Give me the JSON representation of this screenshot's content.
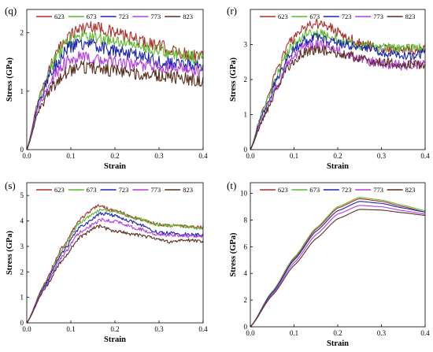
{
  "chart_data": [
    {
      "type": "line",
      "panel_label": "(q)",
      "xlabel": "Strain",
      "ylabel": "Stress (GPa)",
      "xlim": [
        0,
        0.4
      ],
      "ylim": [
        0,
        2.4
      ],
      "xticks": [
        "0.0",
        "0.1",
        "0.2",
        "0.3",
        "0.4"
      ],
      "xtick_values": [
        0,
        0.1,
        0.2,
        0.3,
        0.4
      ],
      "yticks": [
        "0",
        "1",
        "2"
      ],
      "ytick_values": [
        0,
        1,
        2
      ],
      "legend_position": "top",
      "noise": 0.045,
      "series": [
        {
          "name": "623",
          "color": "#a8322a",
          "points": [
            [
              0,
              0
            ],
            [
              0.03,
              0.95
            ],
            [
              0.06,
              1.55
            ],
            [
              0.09,
              1.92
            ],
            [
              0.12,
              2.08
            ],
            [
              0.15,
              2.12
            ],
            [
              0.2,
              2.0
            ],
            [
              0.25,
              1.88
            ],
            [
              0.3,
              1.78
            ],
            [
              0.35,
              1.65
            ],
            [
              0.4,
              1.6
            ]
          ]
        },
        {
          "name": "673",
          "color": "#5cb82e",
          "points": [
            [
              0,
              0
            ],
            [
              0.03,
              0.92
            ],
            [
              0.06,
              1.5
            ],
            [
              0.09,
              1.85
            ],
            [
              0.12,
              1.95
            ],
            [
              0.15,
              1.92
            ],
            [
              0.2,
              1.85
            ],
            [
              0.25,
              1.78
            ],
            [
              0.3,
              1.7
            ],
            [
              0.35,
              1.62
            ],
            [
              0.4,
              1.55
            ]
          ]
        },
        {
          "name": "723",
          "color": "#1a24b0",
          "points": [
            [
              0,
              0
            ],
            [
              0.03,
              0.88
            ],
            [
              0.06,
              1.4
            ],
            [
              0.09,
              1.72
            ],
            [
              0.12,
              1.82
            ],
            [
              0.15,
              1.8
            ],
            [
              0.2,
              1.68
            ],
            [
              0.25,
              1.62
            ],
            [
              0.3,
              1.5
            ],
            [
              0.35,
              1.45
            ],
            [
              0.4,
              1.42
            ]
          ]
        },
        {
          "name": "773",
          "color": "#b43ce0",
          "points": [
            [
              0,
              0
            ],
            [
              0.03,
              0.8
            ],
            [
              0.06,
              1.25
            ],
            [
              0.09,
              1.5
            ],
            [
              0.12,
              1.58
            ],
            [
              0.15,
              1.55
            ],
            [
              0.2,
              1.5
            ],
            [
              0.25,
              1.45
            ],
            [
              0.3,
              1.42
            ],
            [
              0.35,
              1.38
            ],
            [
              0.4,
              1.35
            ]
          ]
        },
        {
          "name": "823",
          "color": "#5a2e1e",
          "points": [
            [
              0,
              0
            ],
            [
              0.03,
              0.72
            ],
            [
              0.06,
              1.1
            ],
            [
              0.09,
              1.32
            ],
            [
              0.12,
              1.42
            ],
            [
              0.15,
              1.4
            ],
            [
              0.2,
              1.35
            ],
            [
              0.25,
              1.3
            ],
            [
              0.3,
              1.28
            ],
            [
              0.35,
              1.22
            ],
            [
              0.4,
              1.18
            ]
          ]
        }
      ]
    },
    {
      "type": "line",
      "panel_label": "(r)",
      "xlabel": "Strain",
      "ylabel": "Stress (GPa)",
      "xlim": [
        0,
        0.4
      ],
      "ylim": [
        0,
        4.0
      ],
      "xticks": [
        "0.0",
        "0.1",
        "0.2",
        "0.3",
        "0.4"
      ],
      "xtick_values": [
        0,
        0.1,
        0.2,
        0.3,
        0.4
      ],
      "yticks": [
        "0",
        "1",
        "2",
        "3"
      ],
      "ytick_values": [
        0,
        1,
        2,
        3
      ],
      "legend_position": "top",
      "noise": 0.035,
      "series": [
        {
          "name": "623",
          "color": "#a8322a",
          "points": [
            [
              0,
              0
            ],
            [
              0.03,
              1.2
            ],
            [
              0.06,
              2.2
            ],
            [
              0.09,
              3.05
            ],
            [
              0.12,
              3.45
            ],
            [
              0.15,
              3.6
            ],
            [
              0.18,
              3.5
            ],
            [
              0.22,
              3.2
            ],
            [
              0.26,
              3.0
            ],
            [
              0.3,
              2.9
            ],
            [
              0.35,
              2.85
            ],
            [
              0.4,
              2.85
            ]
          ]
        },
        {
          "name": "673",
          "color": "#5cb82e",
          "points": [
            [
              0,
              0
            ],
            [
              0.03,
              1.15
            ],
            [
              0.06,
              2.1
            ],
            [
              0.09,
              2.9
            ],
            [
              0.12,
              3.25
            ],
            [
              0.15,
              3.32
            ],
            [
              0.18,
              3.25
            ],
            [
              0.22,
              3.05
            ],
            [
              0.26,
              2.95
            ],
            [
              0.3,
              2.9
            ],
            [
              0.35,
              2.88
            ],
            [
              0.4,
              2.9
            ]
          ]
        },
        {
          "name": "723",
          "color": "#1a24b0",
          "points": [
            [
              0,
              0
            ],
            [
              0.03,
              1.05
            ],
            [
              0.06,
              1.95
            ],
            [
              0.09,
              2.75
            ],
            [
              0.12,
              3.1
            ],
            [
              0.15,
              3.18
            ],
            [
              0.18,
              3.1
            ],
            [
              0.22,
              3.0
            ],
            [
              0.26,
              2.9
            ],
            [
              0.3,
              2.78
            ],
            [
              0.35,
              2.65
            ],
            [
              0.4,
              2.75
            ]
          ]
        },
        {
          "name": "773",
          "color": "#b43ce0",
          "points": [
            [
              0,
              0
            ],
            [
              0.03,
              0.95
            ],
            [
              0.06,
              1.8
            ],
            [
              0.09,
              2.55
            ],
            [
              0.12,
              2.9
            ],
            [
              0.15,
              3.02
            ],
            [
              0.18,
              2.95
            ],
            [
              0.22,
              2.7
            ],
            [
              0.26,
              2.55
            ],
            [
              0.3,
              2.45
            ],
            [
              0.35,
              2.4
            ],
            [
              0.4,
              2.45
            ]
          ]
        },
        {
          "name": "823",
          "color": "#5a2e1e",
          "points": [
            [
              0,
              0
            ],
            [
              0.03,
              0.9
            ],
            [
              0.06,
              1.7
            ],
            [
              0.09,
              2.4
            ],
            [
              0.12,
              2.75
            ],
            [
              0.15,
              2.85
            ],
            [
              0.18,
              2.82
            ],
            [
              0.22,
              2.7
            ],
            [
              0.26,
              2.55
            ],
            [
              0.3,
              2.5
            ],
            [
              0.35,
              2.4
            ],
            [
              0.4,
              2.42
            ]
          ]
        }
      ]
    },
    {
      "type": "line",
      "panel_label": "(s)",
      "xlabel": "Strain",
      "ylabel": "Stress (GPa)",
      "xlim": [
        0,
        0.4
      ],
      "ylim": [
        0,
        5.5
      ],
      "xticks": [
        "0.0",
        "0.1",
        "0.2",
        "0.3",
        "0.4"
      ],
      "xtick_values": [
        0,
        0.1,
        0.2,
        0.3,
        0.4
      ],
      "yticks": [
        "0",
        "1",
        "2",
        "3",
        "4",
        "5"
      ],
      "ytick_values": [
        0,
        1,
        2,
        3,
        4,
        5
      ],
      "legend_position": "top",
      "noise": 0.012,
      "series": [
        {
          "name": "623",
          "color": "#a8322a",
          "points": [
            [
              0,
              0
            ],
            [
              0.04,
              1.55
            ],
            [
              0.08,
              2.95
            ],
            [
              0.12,
              4.05
            ],
            [
              0.16,
              4.6
            ],
            [
              0.2,
              4.4
            ],
            [
              0.25,
              4.1
            ],
            [
              0.3,
              3.85
            ],
            [
              0.35,
              3.8
            ],
            [
              0.4,
              3.75
            ]
          ]
        },
        {
          "name": "673",
          "color": "#5cb82e",
          "points": [
            [
              0,
              0
            ],
            [
              0.04,
              1.5
            ],
            [
              0.08,
              2.85
            ],
            [
              0.12,
              3.95
            ],
            [
              0.17,
              4.45
            ],
            [
              0.2,
              4.38
            ],
            [
              0.25,
              4.1
            ],
            [
              0.3,
              3.85
            ],
            [
              0.35,
              3.8
            ],
            [
              0.4,
              3.7
            ]
          ]
        },
        {
          "name": "723",
          "color": "#1a24b0",
          "points": [
            [
              0,
              0
            ],
            [
              0.04,
              1.45
            ],
            [
              0.08,
              2.75
            ],
            [
              0.12,
              3.75
            ],
            [
              0.17,
              4.3
            ],
            [
              0.2,
              4.2
            ],
            [
              0.25,
              3.9
            ],
            [
              0.3,
              3.55
            ],
            [
              0.35,
              3.48
            ],
            [
              0.4,
              3.45
            ]
          ]
        },
        {
          "name": "773",
          "color": "#b43ce0",
          "points": [
            [
              0,
              0
            ],
            [
              0.04,
              1.38
            ],
            [
              0.08,
              2.6
            ],
            [
              0.12,
              3.55
            ],
            [
              0.17,
              4.05
            ],
            [
              0.2,
              3.98
            ],
            [
              0.25,
              3.7
            ],
            [
              0.3,
              3.45
            ],
            [
              0.35,
              3.42
            ],
            [
              0.4,
              3.4
            ]
          ]
        },
        {
          "name": "823",
          "color": "#5a2e1e",
          "points": [
            [
              0,
              0
            ],
            [
              0.04,
              1.32
            ],
            [
              0.08,
              2.45
            ],
            [
              0.12,
              3.35
            ],
            [
              0.16,
              3.8
            ],
            [
              0.2,
              3.6
            ],
            [
              0.25,
              3.45
            ],
            [
              0.3,
              3.3
            ],
            [
              0.33,
              3.15
            ],
            [
              0.36,
              3.25
            ],
            [
              0.4,
              3.2
            ]
          ]
        }
      ]
    },
    {
      "type": "line",
      "panel_label": "(t)",
      "xlabel": "Strain",
      "ylabel": "Stress (GPa)",
      "xlim": [
        0,
        0.4
      ],
      "ylim": [
        0,
        10.8
      ],
      "xticks": [
        "0.0",
        "0.1",
        "0.2",
        "0.3",
        "0.4"
      ],
      "xtick_values": [
        0,
        0.1,
        0.2,
        0.3,
        0.4
      ],
      "yticks": [
        "0",
        "2",
        "4",
        "6",
        "8",
        "10"
      ],
      "ytick_values": [
        0,
        2,
        4,
        6,
        8,
        10
      ],
      "legend_position": "top",
      "noise": 0,
      "series": [
        {
          "name": "623",
          "color": "#a8322a",
          "points": [
            [
              0,
              0
            ],
            [
              0.05,
              2.6
            ],
            [
              0.1,
              5.1
            ],
            [
              0.15,
              7.3
            ],
            [
              0.2,
              8.9
            ],
            [
              0.25,
              9.6
            ],
            [
              0.3,
              9.4
            ],
            [
              0.35,
              9.0
            ],
            [
              0.4,
              8.6
            ]
          ]
        },
        {
          "name": "673",
          "color": "#5cb82e",
          "points": [
            [
              0,
              0
            ],
            [
              0.05,
              2.65
            ],
            [
              0.1,
              5.2
            ],
            [
              0.15,
              7.4
            ],
            [
              0.2,
              9.0
            ],
            [
              0.25,
              9.7
            ],
            [
              0.3,
              9.5
            ],
            [
              0.35,
              9.1
            ],
            [
              0.4,
              8.7
            ]
          ]
        },
        {
          "name": "723",
          "color": "#1a24b0",
          "points": [
            [
              0,
              0
            ],
            [
              0.05,
              2.55
            ],
            [
              0.1,
              5.0
            ],
            [
              0.15,
              7.15
            ],
            [
              0.2,
              8.7
            ],
            [
              0.25,
              9.4
            ],
            [
              0.3,
              9.25
            ],
            [
              0.35,
              8.9
            ],
            [
              0.4,
              8.6
            ]
          ]
        },
        {
          "name": "773",
          "color": "#b43ce0",
          "points": [
            [
              0,
              0
            ],
            [
              0.05,
              2.45
            ],
            [
              0.1,
              4.8
            ],
            [
              0.15,
              6.9
            ],
            [
              0.2,
              8.45
            ],
            [
              0.25,
              9.1
            ],
            [
              0.3,
              9.0
            ],
            [
              0.35,
              8.7
            ],
            [
              0.4,
              8.45
            ]
          ]
        },
        {
          "name": "823",
          "color": "#5a2e1e",
          "points": [
            [
              0,
              0
            ],
            [
              0.05,
              2.35
            ],
            [
              0.1,
              4.6
            ],
            [
              0.15,
              6.6
            ],
            [
              0.2,
              8.1
            ],
            [
              0.25,
              8.8
            ],
            [
              0.3,
              8.75
            ],
            [
              0.35,
              8.55
            ],
            [
              0.4,
              8.35
            ]
          ]
        }
      ]
    }
  ]
}
